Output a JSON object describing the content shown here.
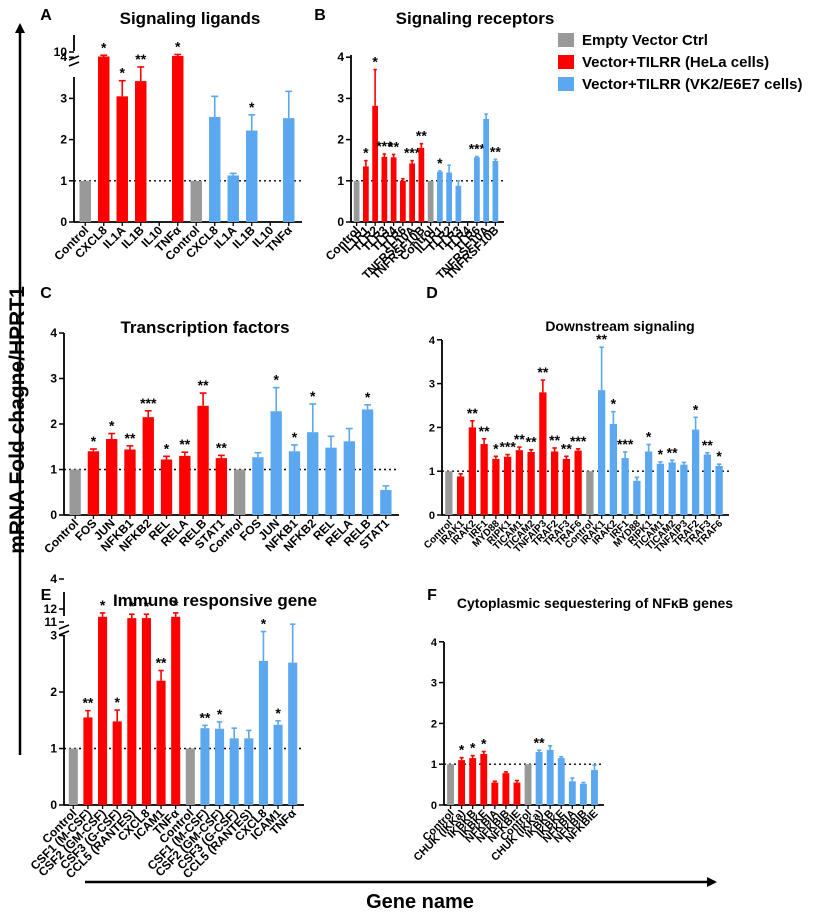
{
  "figure": {
    "y_axis_label": "mRNA Fold chagne/HPRT1",
    "x_axis_label": "Gene name",
    "legend": [
      {
        "label": "Empty Vector Ctrl",
        "color": "#999999"
      },
      {
        "label": "Vector+TILRR (HeLa cells)",
        "color": "#ff0000"
      },
      {
        "label": "Vector+TILRR (VK2/E6E7 cells)",
        "color": "#5ba7f0"
      }
    ]
  },
  "colors": {
    "ctrl": "#999999",
    "hela": "#ff0000",
    "vk2": "#5ba7f0"
  },
  "chart_data": [
    {
      "panel": "A",
      "title": "Signaling ligands",
      "type": "bar",
      "y_ticks": [
        "0",
        "1",
        "2",
        "3",
        "4",
        "10"
      ],
      "ylim": [
        0,
        10
      ],
      "axis_break": true,
      "categories": [
        "Control",
        "CXCL8",
        "IL1A",
        "IL1B",
        "IL10",
        "TNFα",
        "Control",
        "CXCL8",
        "IL1A",
        "IL1B",
        "IL10",
        "TNFα"
      ],
      "groups": [
        "ctrl",
        "hela",
        "hela",
        "hela",
        "hela",
        "hela",
        "ctrl",
        "vk2",
        "vk2",
        "vk2",
        "vk2",
        "vk2"
      ],
      "values": [
        1.0,
        8.2,
        3.05,
        3.42,
        0,
        8.4,
        1.0,
        2.55,
        1.13,
        2.22,
        0,
        2.52
      ],
      "errors": [
        0,
        0.5,
        0.38,
        0.6,
        0,
        0.6,
        0,
        0.5,
        0.05,
        0.38,
        0,
        0.65
      ],
      "significance": [
        "",
        "*",
        "*",
        "**",
        "",
        "*",
        "",
        "",
        "",
        "*",
        "",
        ""
      ]
    },
    {
      "panel": "B",
      "title": "Signaling receptors",
      "type": "bar",
      "y_ticks": [
        "0",
        "1",
        "2",
        "3",
        "4"
      ],
      "ylim": [
        0,
        4
      ],
      "categories": [
        "Control",
        "IL1R1",
        "TLR2",
        "TLR3",
        "TLR4",
        "TLR6",
        "TNFRSF10A",
        "TNFRSF10B",
        "Control",
        "IL1R1",
        "TLR2",
        "TLR3",
        "TLR4",
        "TLR6",
        "TNFRSF10A",
        "TNFRSF10B"
      ],
      "groups": [
        "ctrl",
        "hela",
        "hela",
        "hela",
        "hela",
        "hela",
        "hela",
        "hela",
        "ctrl",
        "vk2",
        "vk2",
        "vk2",
        "vk2",
        "vk2",
        "vk2",
        "vk2"
      ],
      "values": [
        1.0,
        1.35,
        2.82,
        1.58,
        1.57,
        1.0,
        1.42,
        1.8,
        1.0,
        1.22,
        1.2,
        0.88,
        0,
        1.57,
        2.5,
        1.48
      ],
      "errors": [
        0,
        0.14,
        0.88,
        0.07,
        0.07,
        0.05,
        0.07,
        0.1,
        0,
        0.02,
        0.18,
        0.12,
        0,
        0.02,
        0.12,
        0.04
      ],
      "significance": [
        "",
        "*",
        "*",
        "***",
        "**",
        "",
        "***",
        "**",
        "",
        "*",
        "",
        "",
        "",
        "***",
        "",
        "**"
      ]
    },
    {
      "panel": "C",
      "title": "Transcription factors",
      "type": "bar",
      "y_ticks": [
        "0",
        "1",
        "2",
        "3",
        "4"
      ],
      "ylim": [
        0,
        4
      ],
      "categories": [
        "Control",
        "FOS",
        "JUN",
        "NFKB1",
        "NFKB2",
        "REL",
        "RELA",
        "RELB",
        "STAT1",
        "Control",
        "FOS",
        "JUN",
        "NFKB1",
        "NFKB2",
        "REL",
        "RELA",
        "RELB",
        "STAT1"
      ],
      "groups": [
        "ctrl",
        "hela",
        "hela",
        "hela",
        "hela",
        "hela",
        "hela",
        "hela",
        "hela",
        "ctrl",
        "vk2",
        "vk2",
        "vk2",
        "vk2",
        "vk2",
        "vk2",
        "vk2",
        "vk2"
      ],
      "values": [
        1.0,
        1.4,
        1.67,
        1.44,
        2.15,
        1.22,
        1.3,
        2.4,
        1.25,
        1.0,
        1.27,
        2.28,
        1.4,
        1.82,
        1.48,
        1.62,
        2.32,
        0.55
      ],
      "errors": [
        0,
        0.05,
        0.12,
        0.08,
        0.14,
        0.07,
        0.08,
        0.28,
        0.06,
        0,
        0.1,
        0.52,
        0.14,
        0.62,
        0.25,
        0.28,
        0.1,
        0.09
      ],
      "significance": [
        "",
        "*",
        "*",
        "**",
        "***",
        "*",
        "**",
        "**",
        "**",
        "",
        "",
        "*",
        "*",
        "*",
        "",
        "",
        "*",
        ""
      ]
    },
    {
      "panel": "D",
      "title": "Downstream signaling",
      "type": "bar",
      "y_ticks": [
        "0",
        "1",
        "2",
        "3",
        "4"
      ],
      "ylim": [
        0,
        4
      ],
      "categories": [
        "Control",
        "IRAK1",
        "IRAK2",
        "IRF1",
        "MYD88",
        "RIPK1",
        "TICAM1",
        "TICAM2",
        "TNFAIP3",
        "TRAF2",
        "TRAF3",
        "TRAF6",
        "Control",
        "IRAK1",
        "IRAK2",
        "IRF1",
        "MYD88",
        "RIPK1",
        "TICAM1",
        "TICAM2",
        "TNFAIP3",
        "TRAF2",
        "TRAF3",
        "TRAF6"
      ],
      "groups": [
        "ctrl",
        "hela",
        "hela",
        "hela",
        "hela",
        "hela",
        "hela",
        "hela",
        "hela",
        "hela",
        "hela",
        "hela",
        "ctrl",
        "vk2",
        "vk2",
        "vk2",
        "vk2",
        "vk2",
        "vk2",
        "vk2",
        "vk2",
        "vk2",
        "vk2",
        "vk2"
      ],
      "values": [
        1.0,
        0.88,
        2.0,
        1.62,
        1.28,
        1.33,
        1.48,
        1.44,
        2.8,
        1.45,
        1.28,
        1.47,
        1.0,
        2.85,
        2.08,
        1.3,
        0.78,
        1.45,
        1.17,
        1.2,
        1.15,
        1.95,
        1.38,
        1.12
      ],
      "errors": [
        0,
        0.06,
        0.15,
        0.12,
        0.06,
        0.05,
        0.07,
        0.05,
        0.28,
        0.08,
        0.06,
        0.04,
        0,
        0.98,
        0.28,
        0.14,
        0.08,
        0.16,
        0.04,
        0.05,
        0.05,
        0.28,
        0.04,
        0.04
      ],
      "significance": [
        "",
        "",
        "**",
        "**",
        "*",
        "***",
        "**",
        "**",
        "**",
        "**",
        "**",
        "***",
        "",
        "**",
        "*",
        "***",
        "",
        "*",
        "*",
        "**",
        "",
        "*",
        "**",
        "*"
      ]
    },
    {
      "panel": "E",
      "title": "Immune responsive gene",
      "type": "bar",
      "y_ticks": [
        "0",
        "1",
        "2",
        "3",
        "4",
        "11",
        "12"
      ],
      "ylim": [
        0,
        12
      ],
      "axis_break": true,
      "categories": [
        "Control",
        "CSF1 (M-CSF)",
        "CSF2 (GM-CSF)",
        "CSF3 (G-CSF)",
        "CCL5 (RANTES)",
        "CXCL8",
        "ICAM1",
        "TNFα",
        "Control",
        "CSF1 (M-CSF)",
        "CSF2 (GM-CSF)",
        "CSF3 (G-CSF)",
        "CCL5 (RANTES)",
        "CXCL8",
        "ICAM1",
        "TNFα"
      ],
      "groups": [
        "ctrl",
        "hela",
        "hela",
        "hela",
        "hela",
        "hela",
        "hela",
        "hela",
        "ctrl",
        "vk2",
        "vk2",
        "vk2",
        "vk2",
        "vk2",
        "vk2",
        "vk2"
      ],
      "values": [
        1.0,
        1.55,
        11.4,
        1.48,
        11.3,
        11.3,
        2.2,
        11.4,
        1.0,
        1.36,
        1.35,
        1.18,
        1.18,
        2.55,
        1.42,
        2.52
      ],
      "errors": [
        0,
        0.12,
        0.3,
        0.2,
        0.3,
        0.3,
        0.18,
        0.3,
        0,
        0.05,
        0.12,
        0.18,
        0.14,
        0.52,
        0.07,
        0.68
      ],
      "significance": [
        "",
        "**",
        "*",
        "*",
        "*",
        "*",
        "**",
        "*",
        "",
        "**",
        "*",
        "",
        "",
        "*",
        "*",
        ""
      ]
    },
    {
      "panel": "F",
      "title": "Cytoplasmic sequestering of NFκB genes",
      "type": "bar",
      "y_ticks": [
        "0",
        "1",
        "2",
        "3",
        "4"
      ],
      "ylim": [
        0,
        4
      ],
      "categories": [
        "Control",
        "CHUK (IKKa)",
        "IKBKB",
        "IKBKE",
        "NFKBIA",
        "NFKBIB",
        "NFKBIE",
        "Control",
        "CHUK (IKKa)",
        "IKBKB",
        "IKBKE",
        "NFKBIA",
        "NFKBIB",
        "NFKBIE"
      ],
      "groups": [
        "ctrl",
        "hela",
        "hela",
        "hela",
        "hela",
        "hela",
        "hela",
        "ctrl",
        "vk2",
        "vk2",
        "vk2",
        "vk2",
        "vk2",
        "vk2"
      ],
      "values": [
        1.0,
        1.1,
        1.15,
        1.25,
        0.55,
        0.78,
        0.55,
        1.0,
        1.3,
        1.35,
        1.15,
        0.58,
        0.52,
        0.86
      ],
      "errors": [
        0,
        0.06,
        0.06,
        0.06,
        0.03,
        0.03,
        0.05,
        0,
        0.04,
        0.1,
        0.03,
        0.08,
        0.03,
        0.12
      ],
      "significance": [
        "",
        "*",
        "*",
        "*",
        "",
        "",
        "",
        "",
        "**",
        "",
        "",
        "",
        "",
        ""
      ]
    }
  ]
}
